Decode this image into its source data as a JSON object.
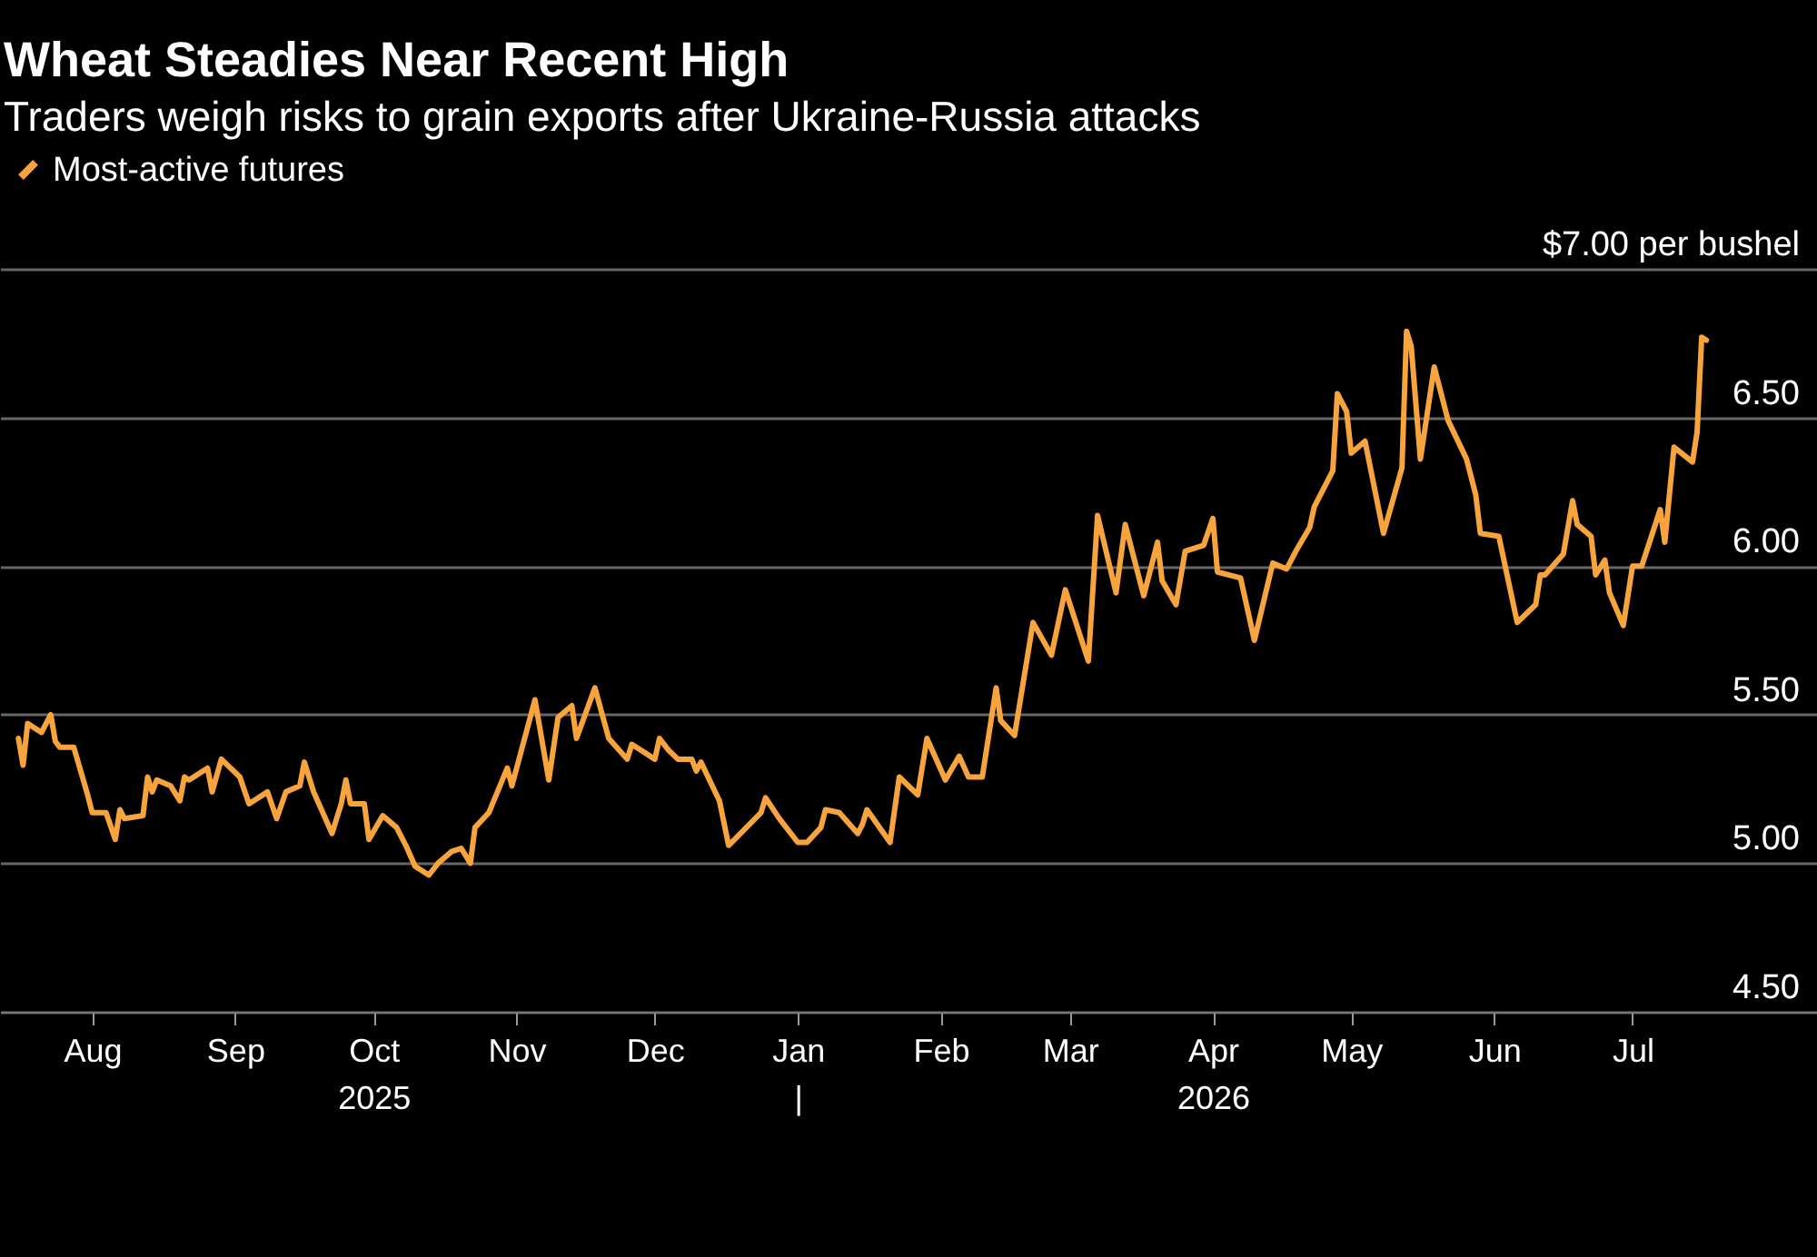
{
  "chart_data": {
    "type": "line",
    "title": "Wheat Steadies Near Recent High",
    "subtitle": "Traders weigh risks to grain exports after Ukraine-Russia attacks",
    "x": [
      "2025-07-16",
      "2025-07-17",
      "2025-07-18",
      "2025-07-21",
      "2025-07-23",
      "2025-07-24",
      "2025-07-25",
      "2025-07-28",
      "2025-07-31",
      "2025-08-01",
      "2025-08-04",
      "2025-08-06",
      "2025-08-07",
      "2025-08-08",
      "2025-08-12",
      "2025-08-13",
      "2025-08-14",
      "2025-08-15",
      "2025-08-18",
      "2025-08-20",
      "2025-08-21",
      "2025-08-22",
      "2025-08-26",
      "2025-08-27",
      "2025-08-29",
      "2025-09-02",
      "2025-09-04",
      "2025-09-08",
      "2025-09-10",
      "2025-09-12",
      "2025-09-15",
      "2025-09-16",
      "2025-09-18",
      "2025-09-22",
      "2025-09-24",
      "2025-09-25",
      "2025-09-26",
      "2025-09-29",
      "2025-09-30",
      "2025-10-03",
      "2025-10-06",
      "2025-10-08",
      "2025-10-10",
      "2025-10-13",
      "2025-10-15",
      "2025-10-18",
      "2025-10-20",
      "2025-10-22",
      "2025-10-23",
      "2025-10-26",
      "2025-10-30",
      "2025-10-31",
      "2025-11-05",
      "2025-11-08",
      "2025-11-10",
      "2025-11-13",
      "2025-11-14",
      "2025-11-18",
      "2025-11-21",
      "2025-11-25",
      "2025-11-26",
      "2025-12-01",
      "2025-12-02",
      "2025-12-04",
      "2025-12-06",
      "2025-12-09",
      "2025-12-10",
      "2025-12-11",
      "2025-12-15",
      "2025-12-17",
      "2025-12-24",
      "2025-12-25",
      "2025-12-28",
      "2026-01-01",
      "2026-01-03",
      "2026-01-06",
      "2026-01-07",
      "2026-01-10",
      "2026-01-14",
      "2026-01-15",
      "2026-01-16",
      "2026-01-21",
      "2026-01-23",
      "2026-01-27",
      "2026-01-29",
      "2026-02-02",
      "2026-02-05",
      "2026-02-07",
      "2026-02-10",
      "2026-02-13",
      "2026-02-14",
      "2026-02-17",
      "2026-02-21",
      "2026-02-25",
      "2026-02-28",
      "2026-03-05",
      "2026-03-07",
      "2026-03-11",
      "2026-03-13",
      "2026-03-17",
      "2026-03-20",
      "2026-03-21",
      "2026-03-24",
      "2026-03-26",
      "2026-03-30",
      "2026-04-01",
      "2026-04-02",
      "2026-04-07",
      "2026-04-10",
      "2026-04-14",
      "2026-04-17",
      "2026-04-19",
      "2026-04-22",
      "2026-04-23",
      "2026-04-27",
      "2026-04-28",
      "2026-04-30",
      "2026-05-01",
      "2026-05-04",
      "2026-05-08",
      "2026-05-12",
      "2026-05-13",
      "2026-05-14",
      "2026-05-16",
      "2026-05-19",
      "2026-05-22",
      "2026-05-26",
      "2026-05-28",
      "2026-05-29",
      "2026-06-02",
      "2026-06-06",
      "2026-06-10",
      "2026-06-11",
      "2026-06-12",
      "2026-06-16",
      "2026-06-18",
      "2026-06-19",
      "2026-06-22",
      "2026-06-23",
      "2026-06-25",
      "2026-06-26",
      "2026-06-29",
      "2026-07-01",
      "2026-07-03",
      "2026-07-07",
      "2026-07-08",
      "2026-07-10",
      "2026-07-14",
      "2026-07-15",
      "2026-07-16",
      "2026-07-17"
    ],
    "series": [
      {
        "name": "Most-active futures",
        "color": "#f8a43c",
        "values": [
          5.42,
          5.33,
          5.47,
          5.44,
          5.5,
          5.41,
          5.39,
          5.39,
          5.23,
          5.17,
          5.17,
          5.08,
          5.18,
          5.15,
          5.16,
          5.29,
          5.24,
          5.28,
          5.26,
          5.21,
          5.29,
          5.28,
          5.32,
          5.24,
          5.35,
          5.29,
          5.2,
          5.24,
          5.15,
          5.24,
          5.26,
          5.34,
          5.24,
          5.1,
          5.2,
          5.28,
          5.2,
          5.2,
          5.08,
          5.16,
          5.12,
          5.06,
          4.99,
          4.96,
          5.0,
          5.04,
          5.05,
          5.0,
          5.12,
          5.17,
          5.32,
          5.26,
          5.55,
          5.28,
          5.49,
          5.53,
          5.42,
          5.59,
          5.42,
          5.35,
          5.4,
          5.35,
          5.42,
          5.38,
          5.35,
          5.35,
          5.31,
          5.34,
          5.21,
          5.06,
          5.17,
          5.22,
          5.15,
          5.07,
          5.07,
          5.12,
          5.18,
          5.17,
          5.1,
          5.13,
          5.18,
          5.07,
          5.29,
          5.23,
          5.42,
          5.28,
          5.36,
          5.29,
          5.29,
          5.59,
          5.48,
          5.43,
          5.81,
          5.7,
          5.92,
          5.68,
          6.17,
          5.91,
          6.14,
          5.9,
          6.08,
          5.95,
          5.87,
          6.05,
          6.07,
          6.16,
          5.98,
          5.96,
          5.75,
          6.01,
          5.99,
          6.05,
          6.13,
          6.2,
          6.32,
          6.58,
          6.52,
          6.38,
          6.42,
          6.11,
          6.33,
          6.79,
          6.74,
          6.36,
          6.67,
          6.49,
          6.36,
          6.24,
          6.11,
          6.1,
          5.81,
          5.87,
          5.97,
          5.97,
          6.04,
          6.22,
          6.14,
          6.1,
          5.97,
          6.02,
          5.91,
          5.8,
          6.0,
          6.0,
          6.19,
          6.08,
          6.4,
          6.35,
          6.45,
          6.77,
          6.76
        ]
      }
    ],
    "xlim": [
      "2025-07-12",
      "2026-08-10"
    ],
    "xticks": [
      {
        "value": "2025-08-01",
        "label": "Aug"
      },
      {
        "value": "2025-09-01",
        "label": "Sep"
      },
      {
        "value": "2025-10-01",
        "label": "Oct\n2025"
      },
      {
        "value": "2025-11-01",
        "label": "Nov"
      },
      {
        "value": "2025-12-01",
        "label": "Dec"
      },
      {
        "value": "2026-01-01",
        "label": "Jan\n|"
      },
      {
        "value": "2026-02-01",
        "label": "Feb"
      },
      {
        "value": "2026-03-01",
        "label": "Mar"
      },
      {
        "value": "2026-04-01",
        "label": "Apr\n2026"
      },
      {
        "value": "2026-05-01",
        "label": "May"
      },
      {
        "value": "2026-06-01",
        "label": "Jun"
      },
      {
        "value": "2026-07-01",
        "label": "Jul"
      }
    ],
    "ylim": [
      4.5,
      7.0
    ],
    "yticks": [
      {
        "value": 4.5,
        "label": "4.50"
      },
      {
        "value": 5.0,
        "label": "5.00"
      },
      {
        "value": 5.5,
        "label": "5.50"
      },
      {
        "value": 6.0,
        "label": "6.00"
      },
      {
        "value": 6.5,
        "label": "6.50"
      },
      {
        "value": 7.0,
        "label": "$7.00 per bushel"
      }
    ],
    "grid": "y",
    "legend": "top left"
  }
}
